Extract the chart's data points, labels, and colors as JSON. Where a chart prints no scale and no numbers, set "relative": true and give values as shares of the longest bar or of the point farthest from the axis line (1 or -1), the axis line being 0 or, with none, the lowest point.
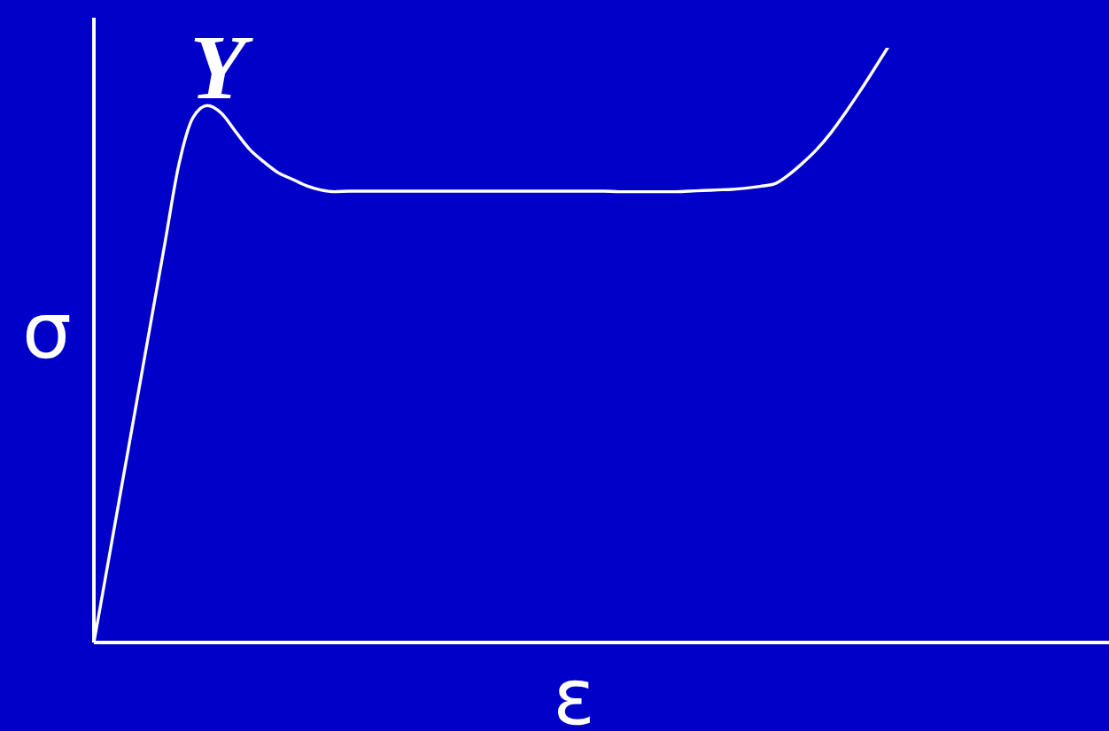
{
  "chart_data": {
    "type": "line",
    "relative": true,
    "xlabel": "ε",
    "ylabel": "σ",
    "color": "#ffffff",
    "annotations": [
      {
        "text": "Y",
        "y": 0.903
      }
    ],
    "categories": [
      null,
      null,
      null,
      null,
      null,
      null,
      null,
      null,
      null,
      null,
      null,
      null,
      null,
      null,
      null,
      null,
      null,
      null,
      null,
      null,
      null,
      null,
      null,
      null,
      null,
      null,
      null,
      null,
      null,
      null,
      null,
      null,
      null,
      null,
      null,
      null,
      null,
      null,
      null,
      null,
      null,
      null,
      null,
      null,
      null,
      null,
      null,
      null,
      null,
      null,
      null,
      null,
      null,
      null,
      null,
      null,
      null,
      null,
      null,
      null,
      null,
      null,
      null,
      null,
      null,
      null,
      null,
      null,
      null,
      null,
      null,
      null
    ],
    "values": [
      0,
      0.134,
      0.268,
      0.402,
      0.536,
      0.67,
      0.804,
      0.883,
      0.903,
      0.89,
      0.859,
      0.829,
      0.808,
      0.79,
      0.779,
      0.768,
      0.761,
      0.758,
      0.759,
      0.759,
      0.759,
      0.759,
      0.759,
      0.759,
      0.759,
      0.759,
      0.759,
      0.759,
      0.759,
      0.759,
      0.759,
      0.759,
      0.759,
      0.759,
      0.759,
      0.759,
      0.759,
      0.758,
      0.758,
      0.758,
      0.758,
      0.758,
      0.759,
      0.76,
      0.761,
      0.762,
      0.764,
      0.767,
      0.771,
      0.786,
      0.806,
      0.829,
      0.857,
      0.89,
      0.925,
      0.962,
      1,
      null,
      null,
      null,
      null,
      null,
      null,
      null,
      null,
      null,
      null,
      null,
      null,
      null,
      null,
      null
    ]
  }
}
